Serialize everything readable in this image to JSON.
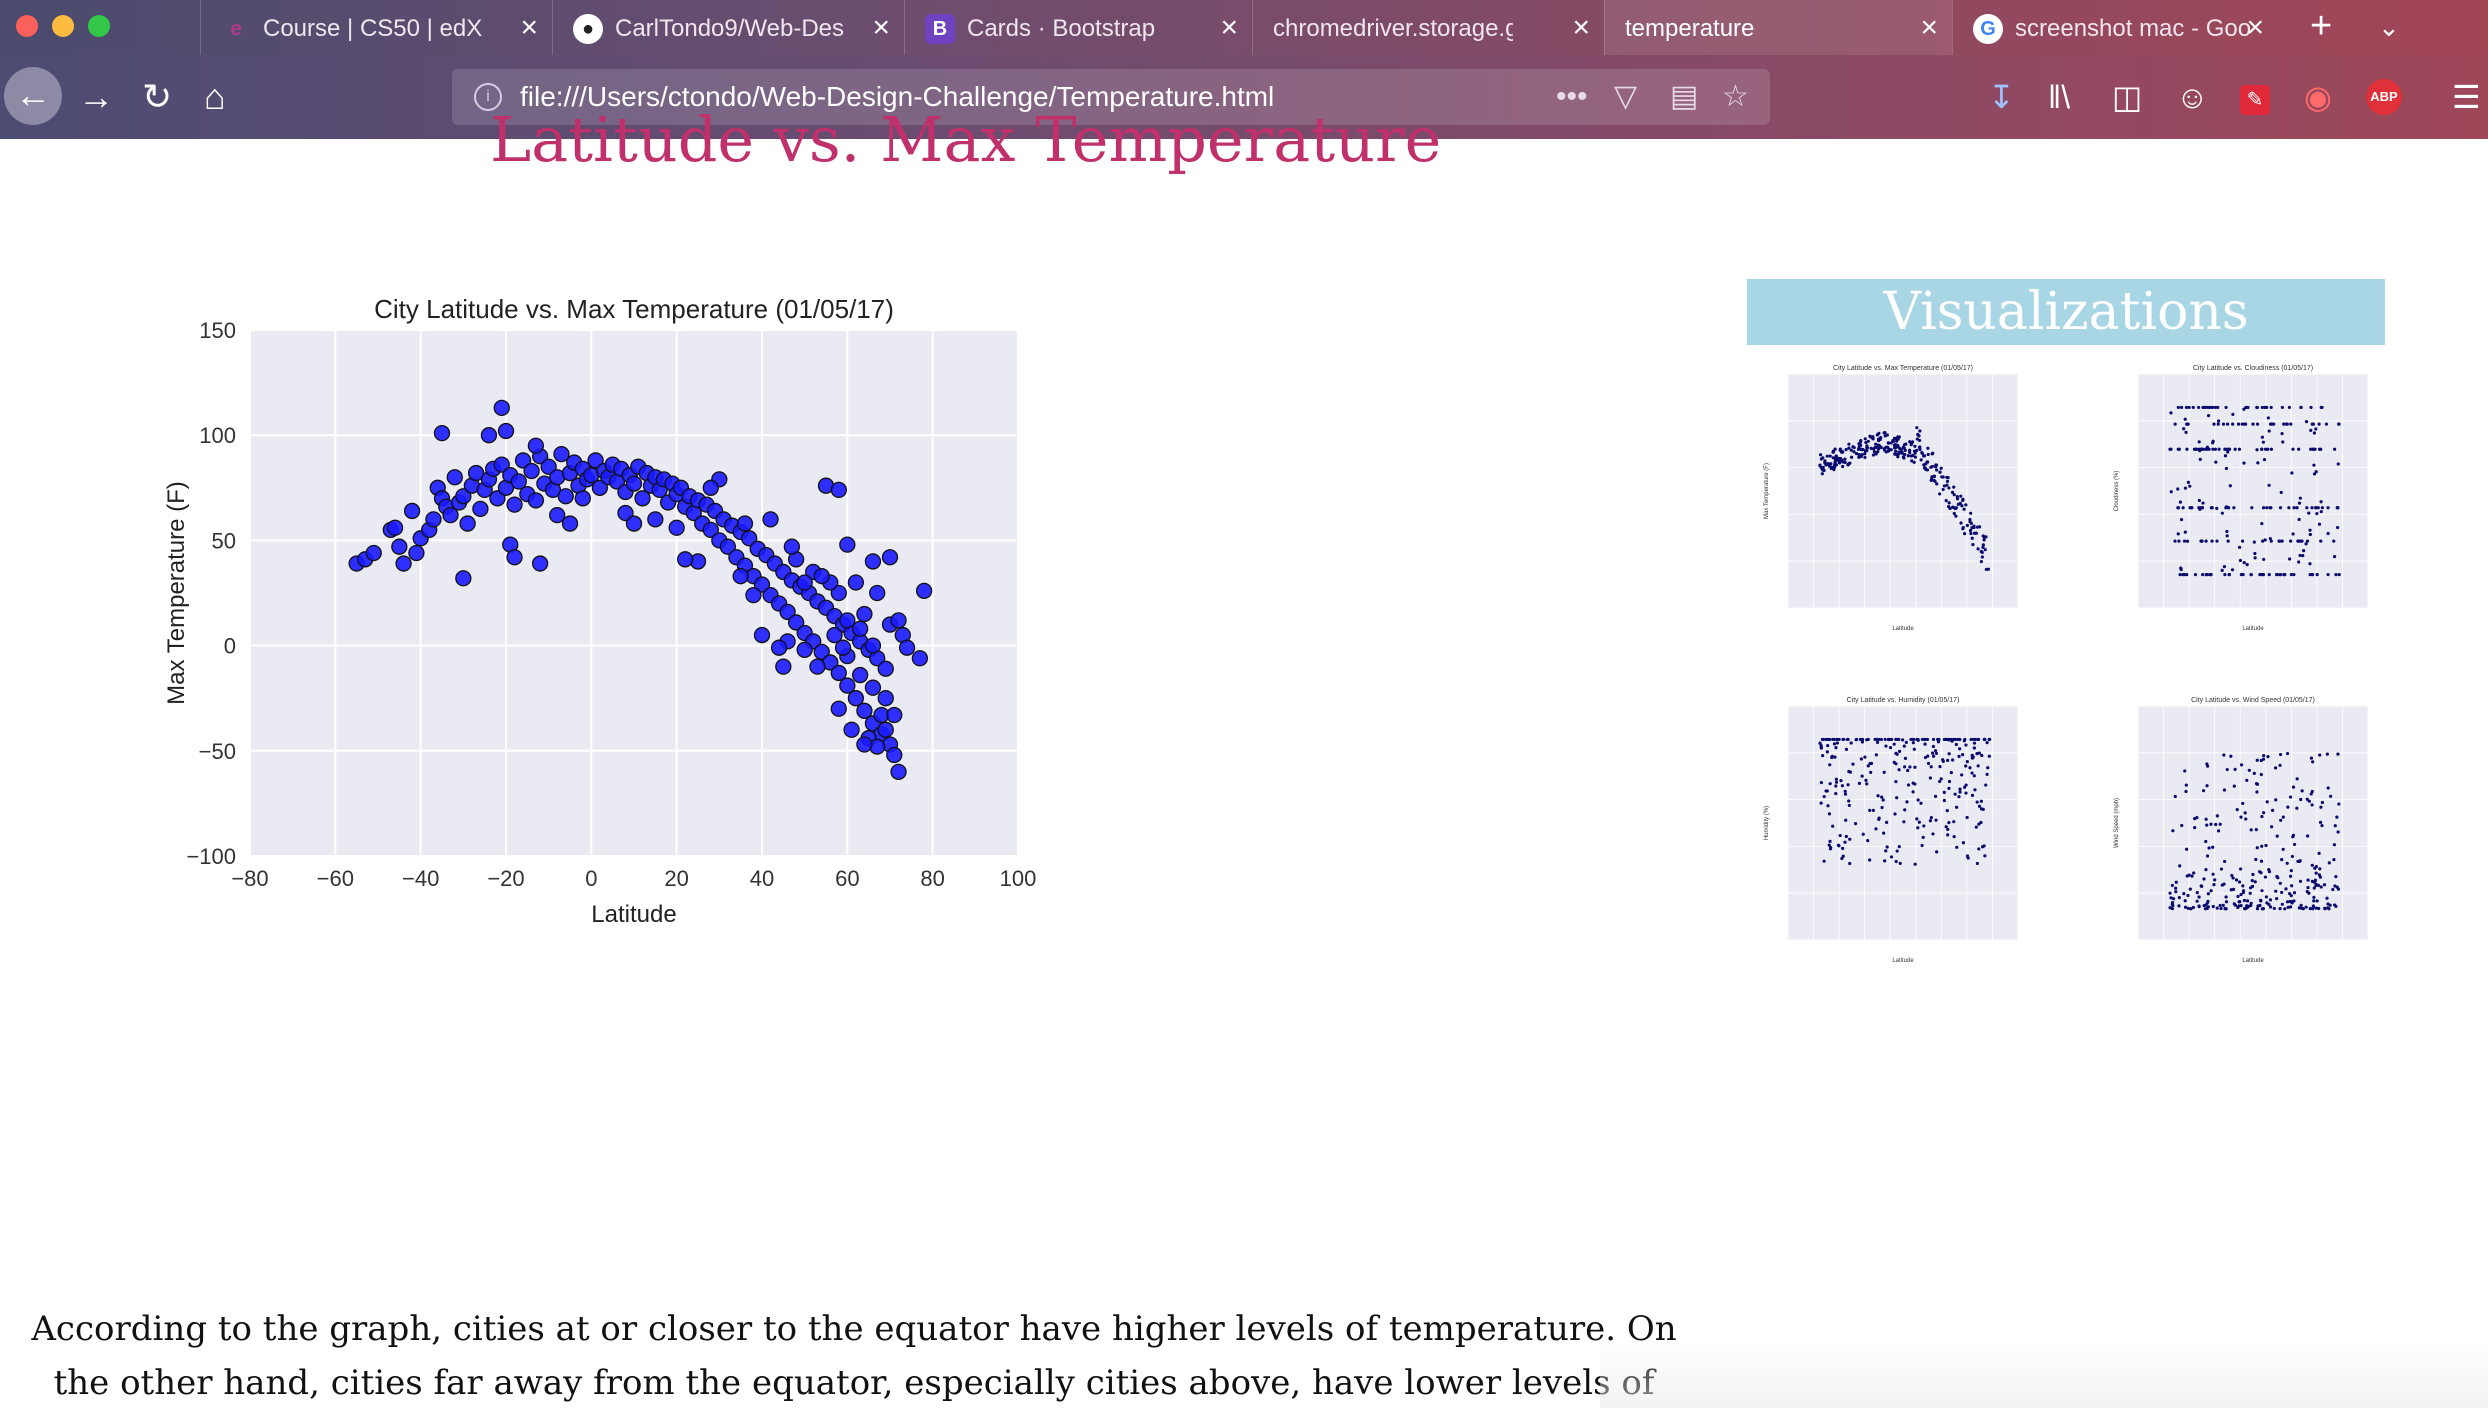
{
  "browser": {
    "tabs": [
      {
        "title": "Course | CS50 | edX",
        "favicon": "edx-icon",
        "glyph": "e"
      },
      {
        "title": "CarlTondo9/Web-Des",
        "favicon": "github-icon",
        "glyph": "●"
      },
      {
        "title": "Cards · Bootstrap",
        "favicon": "bootstrap-icon",
        "glyph": "B"
      },
      {
        "title": "chromedriver.storage.goo",
        "favicon": "",
        "glyph": ""
      },
      {
        "title": "temperature",
        "favicon": "",
        "glyph": ""
      },
      {
        "title": "screenshot mac - Goo",
        "favicon": "google-icon",
        "glyph": "G"
      }
    ],
    "active_tab": 4,
    "url": "file:///Users/ctondo/Web-Design-Challenge/Temperature.html",
    "toolbar_icons": [
      "download-icon",
      "library-icon",
      "sidebar-icon",
      "account-icon",
      "pen-icon",
      "screenshot-icon",
      "adblock-icon",
      "menu-icon"
    ],
    "adblock_label": "ABP"
  },
  "page": {
    "title": "Latitude vs. Max Temperature",
    "visualizations_heading": "Visualizations",
    "description": "According to the graph, cities at or closer to the equator have higher levels of temperature. On the other hand, cities far away from the equator, especially cities above, have lower levels of"
  },
  "colors": {
    "title": "#c0306a",
    "viz_header_bg": "#a9d6e5",
    "plot_bg": "#eaeaf2",
    "marker": "#1a1aff",
    "thumb_marker": "#0b0b6e"
  },
  "chart_data": [
    {
      "type": "scatter",
      "title": "City Latitude vs. Max Temperature (01/05/17)",
      "xlabel": "Latitude",
      "ylabel": "Max Temperature (F)",
      "xlim": [
        -80,
        100
      ],
      "ylim": [
        -100,
        150
      ],
      "xticks": [
        -80,
        -60,
        -40,
        -20,
        0,
        20,
        40,
        60,
        80,
        100
      ],
      "yticks": [
        -100,
        -50,
        0,
        50,
        100,
        150
      ],
      "grid": true,
      "trend": "arch",
      "points": [
        [
          -55,
          39
        ],
        [
          -53,
          41
        ],
        [
          -51,
          44
        ],
        [
          -47,
          55
        ],
        [
          -46,
          56
        ],
        [
          -45,
          47
        ],
        [
          -44,
          39
        ],
        [
          -42,
          64
        ],
        [
          -41,
          44
        ],
        [
          -40,
          51
        ],
        [
          -38,
          55
        ],
        [
          -37,
          60
        ],
        [
          -36,
          75
        ],
        [
          -35,
          70
        ],
        [
          -34,
          66
        ],
        [
          -33,
          62
        ],
        [
          -32,
          80
        ],
        [
          -31,
          68
        ],
        [
          -30,
          71
        ],
        [
          -29,
          58
        ],
        [
          -28,
          76
        ],
        [
          -27,
          82
        ],
        [
          -26,
          65
        ],
        [
          -25,
          74
        ],
        [
          -24,
          79
        ],
        [
          -23,
          84
        ],
        [
          -22,
          70
        ],
        [
          -21,
          86
        ],
        [
          -20,
          75
        ],
        [
          -19,
          81
        ],
        [
          -18,
          67
        ],
        [
          -17,
          78
        ],
        [
          -16,
          88
        ],
        [
          -15,
          72
        ],
        [
          -14,
          83
        ],
        [
          -13,
          69
        ],
        [
          -12,
          90
        ],
        [
          -11,
          77
        ],
        [
          -10,
          85
        ],
        [
          -9,
          74
        ],
        [
          -8,
          80
        ],
        [
          -7,
          91
        ],
        [
          -6,
          71
        ],
        [
          -5,
          82
        ],
        [
          -4,
          87
        ],
        [
          -3,
          76
        ],
        [
          -2,
          84
        ],
        [
          -1,
          79
        ],
        [
          0,
          81
        ],
        [
          1,
          88
        ],
        [
          2,
          75
        ],
        [
          3,
          83
        ],
        [
          4,
          80
        ],
        [
          5,
          86
        ],
        [
          6,
          78
        ],
        [
          7,
          84
        ],
        [
          8,
          73
        ],
        [
          9,
          81
        ],
        [
          10,
          77
        ],
        [
          11,
          85
        ],
        [
          12,
          70
        ],
        [
          13,
          82
        ],
        [
          14,
          76
        ],
        [
          15,
          80
        ],
        [
          16,
          74
        ],
        [
          17,
          79
        ],
        [
          18,
          68
        ],
        [
          19,
          77
        ],
        [
          20,
          72
        ],
        [
          21,
          75
        ],
        [
          22,
          66
        ],
        [
          23,
          71
        ],
        [
          24,
          63
        ],
        [
          25,
          69
        ],
        [
          26,
          58
        ],
        [
          27,
          67
        ],
        [
          28,
          55
        ],
        [
          29,
          64
        ],
        [
          30,
          50
        ],
        [
          31,
          60
        ],
        [
          32,
          47
        ],
        [
          33,
          57
        ],
        [
          34,
          42
        ],
        [
          35,
          54
        ],
        [
          36,
          38
        ],
        [
          37,
          51
        ],
        [
          38,
          33
        ],
        [
          39,
          46
        ],
        [
          40,
          29
        ],
        [
          41,
          43
        ],
        [
          42,
          24
        ],
        [
          43,
          39
        ],
        [
          44,
          20
        ],
        [
          45,
          35
        ],
        [
          46,
          16
        ],
        [
          47,
          31
        ],
        [
          48,
          11
        ],
        [
          49,
          28
        ],
        [
          50,
          6
        ],
        [
          51,
          25
        ],
        [
          52,
          2
        ],
        [
          53,
          21
        ],
        [
          54,
          -3
        ],
        [
          55,
          18
        ],
        [
          56,
          -8
        ],
        [
          57,
          14
        ],
        [
          58,
          -13
        ],
        [
          59,
          10
        ],
        [
          60,
          -19
        ],
        [
          61,
          6
        ],
        [
          62,
          -25
        ],
        [
          63,
          2
        ],
        [
          64,
          -31
        ],
        [
          65,
          -2
        ],
        [
          66,
          -37
        ],
        [
          67,
          -6
        ],
        [
          68,
          -42
        ],
        [
          69,
          -11
        ],
        [
          70,
          -47
        ],
        [
          71,
          -52
        ],
        [
          -30,
          32
        ],
        [
          -35,
          101
        ],
        [
          -20,
          102
        ],
        [
          -21,
          113
        ],
        [
          -24,
          100
        ],
        [
          -19,
          48
        ],
        [
          -18,
          42
        ],
        [
          -12,
          39
        ],
        [
          -13,
          95
        ],
        [
          55,
          76
        ],
        [
          58,
          74
        ],
        [
          60,
          48
        ],
        [
          72,
          -60
        ],
        [
          78,
          26
        ],
        [
          77,
          -6
        ],
        [
          73,
          5
        ],
        [
          48,
          41
        ],
        [
          52,
          35
        ],
        [
          45,
          -10
        ],
        [
          40,
          5
        ],
        [
          38,
          24
        ],
        [
          36,
          58
        ],
        [
          42,
          60
        ],
        [
          25,
          40
        ],
        [
          22,
          41
        ],
        [
          20,
          56
        ],
        [
          35,
          33
        ],
        [
          47,
          47
        ],
        [
          15,
          60
        ],
        [
          8,
          63
        ],
        [
          10,
          58
        ],
        [
          -5,
          58
        ],
        [
          -8,
          62
        ],
        [
          -2,
          70
        ],
        [
          30,
          79
        ],
        [
          28,
          75
        ],
        [
          66,
          40
        ],
        [
          70,
          42
        ],
        [
          67,
          25
        ],
        [
          64,
          15
        ],
        [
          62,
          30
        ],
        [
          58,
          25
        ],
        [
          56,
          30
        ],
        [
          54,
          33
        ],
        [
          50,
          30
        ],
        [
          60,
          -5
        ],
        [
          63,
          -14
        ],
        [
          66,
          -20
        ],
        [
          69,
          -25
        ],
        [
          61,
          -40
        ],
        [
          65,
          -44
        ],
        [
          68,
          -33
        ],
        [
          59,
          -1
        ],
        [
          57,
          5
        ],
        [
          53,
          -10
        ],
        [
          50,
          -2
        ],
        [
          46,
          2
        ],
        [
          44,
          -1
        ],
        [
          70,
          10
        ],
        [
          72,
          12
        ],
        [
          74,
          -1
        ],
        [
          66,
          0
        ],
        [
          63,
          8
        ],
        [
          60,
          12
        ],
        [
          69,
          -40
        ],
        [
          71,
          -33
        ],
        [
          67,
          -48
        ],
        [
          64,
          -47
        ],
        [
          58,
          -30
        ]
      ]
    },
    {
      "type": "scatter",
      "title": "City Latitude vs. Max Temperature (01/05/17)",
      "xlabel": "Latitude",
      "ylabel": "Max Temperature (F)",
      "xlim": [
        -80,
        100
      ],
      "ylim": [
        -100,
        150
      ],
      "trend": "arch"
    },
    {
      "type": "scatter",
      "title": "City Latitude vs. Cloudiness (01/05/17)",
      "xlabel": "Latitude",
      "ylabel": "Cloudiness (%)",
      "xlim": [
        -80,
        100
      ],
      "ylim": [
        -20,
        120
      ],
      "trend": "bands"
    },
    {
      "type": "scatter",
      "title": "City Latitude vs. Humidity (01/05/17)",
      "xlabel": "Latitude",
      "ylabel": "Humidity (%)",
      "xlim": [
        -80,
        100
      ],
      "ylim": [
        -20,
        120
      ],
      "trend": "cap"
    },
    {
      "type": "scatter",
      "title": "City Latitude vs. Wind Speed (01/05/17)",
      "xlabel": "Latitude",
      "ylabel": "Wind Speed (mph)",
      "xlim": [
        -80,
        100
      ],
      "ylim": [
        -5,
        40
      ],
      "trend": "floor"
    }
  ]
}
